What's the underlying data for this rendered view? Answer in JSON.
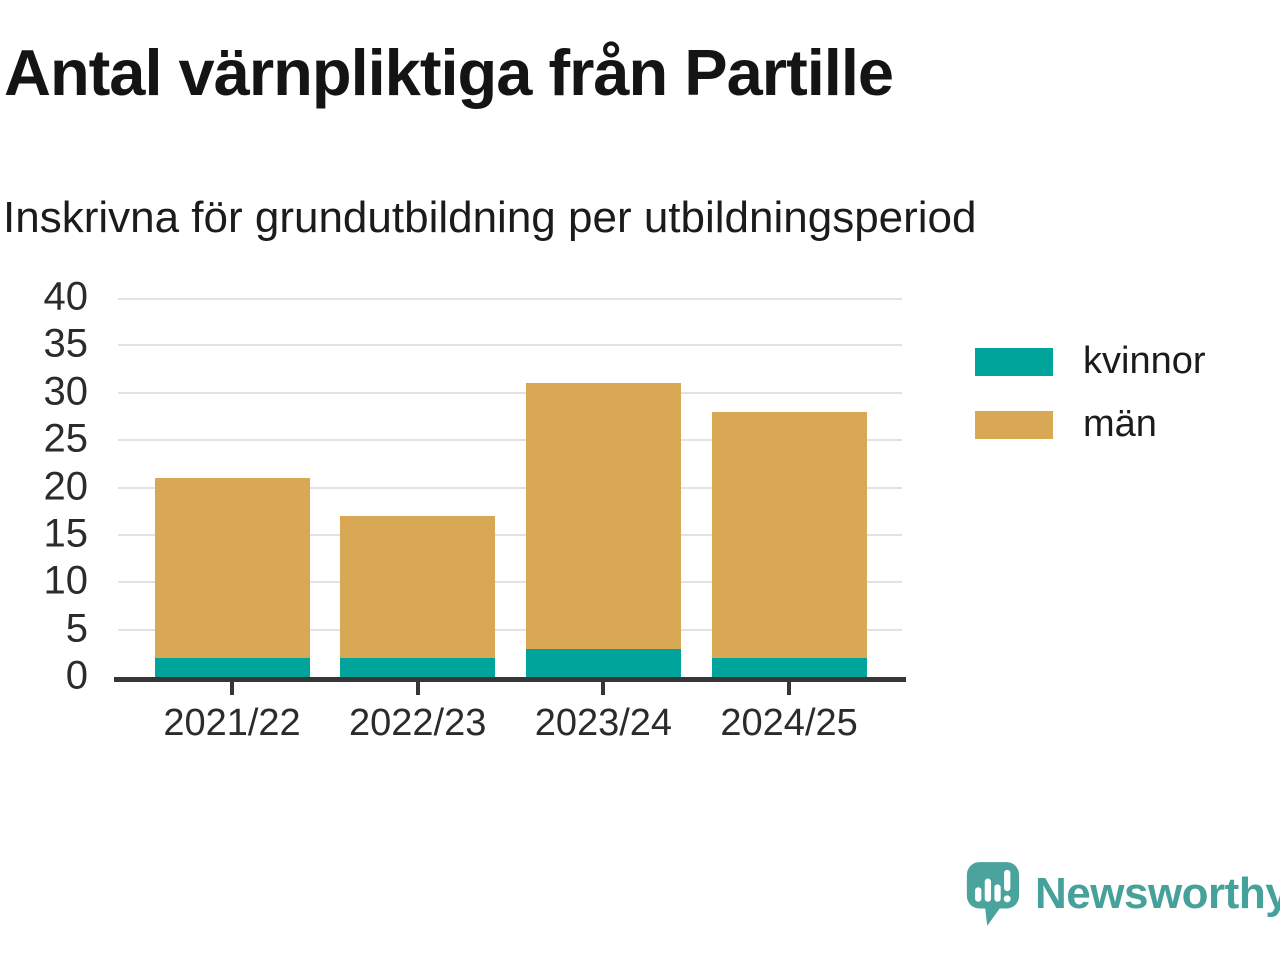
{
  "chart_data": {
    "type": "bar",
    "stacked": true,
    "title": "Antal värnpliktiga från Partille",
    "subtitle": "Inskrivna för grundutbildning per utbildningsperiod",
    "categories": [
      "2021/22",
      "2022/23",
      "2023/24",
      "2024/25"
    ],
    "series": [
      {
        "name": "kvinnor",
        "color": "#00A49B",
        "values": [
          2,
          2,
          3,
          2
        ]
      },
      {
        "name": "män",
        "color": "#D9A854",
        "values": [
          19,
          15,
          28,
          26
        ]
      }
    ],
    "totals": [
      21,
      17,
      31,
      28
    ],
    "xlabel": "",
    "ylabel": "",
    "ylim": [
      0,
      40
    ],
    "yticks": [
      0,
      5,
      10,
      15,
      20,
      25,
      30,
      35,
      40
    ],
    "grid": "horizontal",
    "grid_color": "#e2e2e2",
    "axis_color": "#363636",
    "tick_label_color": "#2b2b2b",
    "legend_position": "right"
  },
  "brand": {
    "name": "Newsworthy",
    "color": "#45A19A"
  }
}
